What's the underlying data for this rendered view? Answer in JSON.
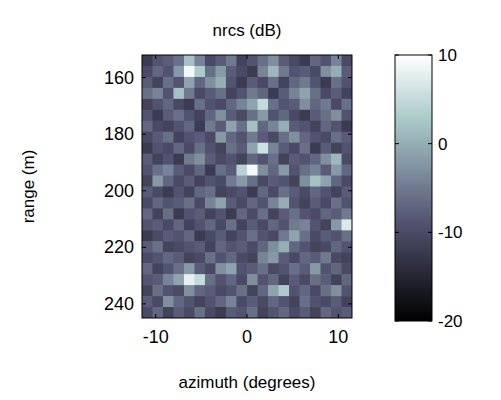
{
  "chart_data": {
    "type": "heatmap",
    "title": "nrcs (dB)",
    "x_label": "azimuth (degrees)",
    "y_label": "range (m)",
    "xlim": [
      -11.5,
      11.5
    ],
    "ylim": [
      152,
      245
    ],
    "xticks": [
      -10,
      0,
      10
    ],
    "yticks": [
      160,
      180,
      200,
      220,
      240
    ],
    "zlim": [
      -20,
      10
    ],
    "zticks": [
      -20,
      -10,
      0,
      10
    ],
    "x": [
      -10.93,
      -9.78,
      -8.63,
      -7.48,
      -6.33,
      -5.18,
      -4.03,
      -2.88,
      -1.73,
      -0.58,
      0.58,
      1.73,
      2.88,
      4.03,
      5.18,
      6.33,
      7.48,
      8.63,
      9.78,
      10.93
    ],
    "y": [
      153.94,
      157.81,
      161.69,
      165.56,
      169.44,
      173.31,
      177.19,
      181.06,
      184.94,
      188.81,
      192.69,
      196.56,
      200.44,
      204.31,
      208.19,
      212.06,
      215.94,
      219.81,
      223.69,
      227.56,
      231.44,
      235.31,
      239.19,
      243.06
    ],
    "values": [
      [
        -12,
        -9,
        -8,
        -6,
        2,
        -4,
        -10,
        -8,
        -5,
        -11,
        -9,
        -6,
        -3,
        -8,
        -10,
        -12,
        -7,
        -9,
        -4,
        -10
      ],
      [
        -10,
        -7,
        -9,
        -2,
        9,
        3,
        -6,
        -2,
        -8,
        -10,
        -12,
        -4,
        1,
        -5,
        -9,
        -8,
        -10,
        -3,
        0,
        -8
      ],
      [
        -8,
        -11,
        -6,
        -9,
        -1,
        -7,
        -3,
        0,
        -9,
        -12,
        -8,
        -10,
        -6,
        -11,
        -7,
        -5,
        -9,
        -12,
        -6,
        -9
      ],
      [
        -6,
        -4,
        -9,
        2,
        -5,
        -10,
        -8,
        -6,
        -11,
        -9,
        -5,
        -7,
        -12,
        -8,
        -4,
        -1,
        -6,
        -10,
        -8,
        -11
      ],
      [
        -11,
        -9,
        -7,
        -10,
        -12,
        -6,
        -9,
        -10,
        -7,
        -4,
        -1,
        5,
        -6,
        -9,
        -8,
        -3,
        -7,
        -5,
        -10,
        -6
      ],
      [
        -9,
        -12,
        -8,
        -6,
        -9,
        -11,
        -7,
        -3,
        -8,
        -10,
        -6,
        -2,
        -9,
        -7,
        -10,
        -12,
        -8,
        -6,
        -3,
        -9
      ],
      [
        -7,
        -10,
        -11,
        -9,
        -7,
        -12,
        -5,
        -8,
        -1,
        -6,
        2,
        -7,
        -4,
        0,
        -8,
        -9,
        -11,
        -7,
        -9,
        -12
      ],
      [
        -10,
        -8,
        -6,
        -11,
        -9,
        -8,
        -10,
        -2,
        -7,
        -9,
        -5,
        -8,
        -10,
        -6,
        -3,
        -7,
        -9,
        -10,
        -6,
        -8
      ],
      [
        -12,
        -9,
        -10,
        -7,
        -10,
        -6,
        -9,
        -11,
        -6,
        -8,
        -1,
        6,
        -4,
        -8,
        -10,
        -6,
        -12,
        -8,
        -11,
        -9
      ],
      [
        -8,
        -11,
        -9,
        -12,
        -5,
        -3,
        -8,
        -10,
        -9,
        -11,
        -7,
        -9,
        -6,
        -11,
        -8,
        -9,
        -7,
        -3,
        1,
        -10
      ],
      [
        -9,
        -6,
        -4,
        -8,
        -10,
        -7,
        -12,
        -6,
        -8,
        4,
        9,
        -3,
        -7,
        -2,
        -9,
        -6,
        -4,
        -8,
        -2,
        -7
      ],
      [
        -11,
        -2,
        -7,
        -10,
        -8,
        -11,
        -9,
        -10,
        -5,
        -2,
        -6,
        -10,
        -8,
        -9,
        -11,
        -3,
        2,
        -1,
        -7,
        -10
      ],
      [
        -8,
        -10,
        -12,
        -9,
        -11,
        -7,
        -6,
        -11,
        -10,
        -9,
        -12,
        -7,
        -10,
        -6,
        -8,
        -10,
        -7,
        -9,
        -11,
        -8
      ],
      [
        -10,
        -7,
        -9,
        -8,
        -6,
        -10,
        -4,
        -1,
        -8,
        -10,
        -7,
        -9,
        -4,
        0,
        -9,
        -11,
        -8,
        -10,
        -6,
        -9
      ],
      [
        -7,
        -11,
        -6,
        -12,
        -9,
        -8,
        -11,
        -9,
        -12,
        -7,
        -10,
        -6,
        -11,
        -8,
        -6,
        -9,
        -10,
        -7,
        -8,
        -5
      ],
      [
        -9,
        -8,
        -10,
        -7,
        -11,
        -9,
        -7,
        -10,
        -6,
        -11,
        -8,
        -10,
        -7,
        -9,
        -5,
        -4,
        -9,
        -11,
        -2,
        7
      ],
      [
        -12,
        -10,
        -8,
        -9,
        -7,
        -12,
        -10,
        -8,
        -11,
        -9,
        -6,
        -9,
        -10,
        -5,
        -1,
        -6,
        -10,
        -8,
        -9,
        -6
      ],
      [
        -8,
        -6,
        -11,
        -10,
        -9,
        -8,
        -11,
        -7,
        -9,
        -8,
        -10,
        -7,
        -3,
        0,
        -7,
        -9,
        -11,
        -10,
        -7,
        -9
      ],
      [
        -10,
        -9,
        -7,
        -8,
        -11,
        -10,
        -6,
        -9,
        -7,
        -10,
        -11,
        -4,
        -2,
        -8,
        -10,
        -7,
        -8,
        -5,
        -10,
        -11
      ],
      [
        -7,
        -11,
        -9,
        -6,
        -2,
        -8,
        -10,
        -3,
        -1,
        -9,
        -8,
        -6,
        -10,
        -9,
        -6,
        -8,
        -2,
        -9,
        -7,
        -10
      ],
      [
        -9,
        -8,
        -4,
        -1,
        8,
        5,
        -6,
        -9,
        -7,
        -10,
        -3,
        -9,
        -7,
        -11,
        -8,
        -10,
        -6,
        -8,
        -11,
        -7
      ],
      [
        -11,
        -6,
        -9,
        -10,
        -3,
        -7,
        -8,
        -10,
        -9,
        -6,
        -11,
        -7,
        -1,
        3,
        -9,
        -7,
        -10,
        -6,
        -3,
        -9
      ],
      [
        -8,
        -10,
        -3,
        -7,
        -9,
        -11,
        -9,
        -7,
        -4,
        -10,
        -8,
        -10,
        -7,
        -9,
        -11,
        -6,
        -9,
        -10,
        -8,
        -11
      ],
      [
        -10,
        -7,
        -11,
        -8,
        -10,
        -6,
        -10,
        -12,
        -8,
        -9,
        -6,
        -11,
        -9,
        -7,
        -10,
        -8,
        -11,
        -7,
        -9,
        -8
      ]
    ]
  }
}
